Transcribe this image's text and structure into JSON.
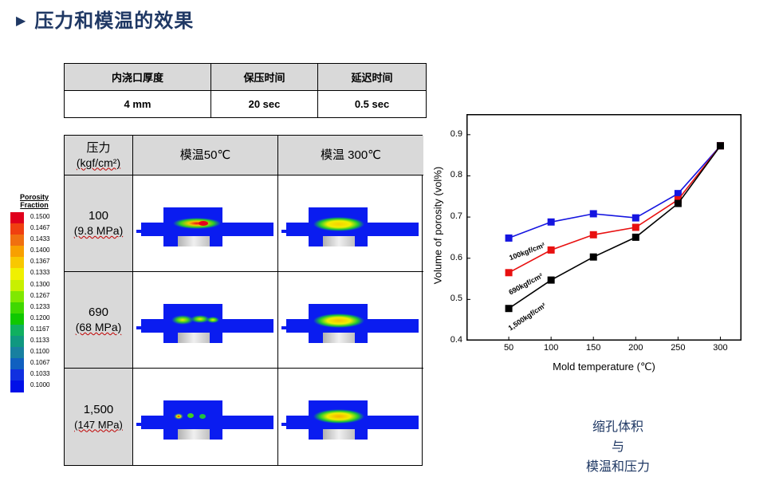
{
  "slide": {
    "title": "压力和模温的效果"
  },
  "params_table": {
    "headers": [
      "内浇口厚度",
      "保压时间",
      "延迟时间"
    ],
    "values": [
      "4 mm",
      "20 sec",
      "0.5 sec"
    ]
  },
  "sim_table": {
    "header": {
      "pressure_label": "压力",
      "pressure_unit": "(kgf/cm²)",
      "col1": "模温50℃",
      "col2": "模温 300℃"
    },
    "rows": [
      {
        "pressure": "100",
        "mpa": "(9.8 MPa)"
      },
      {
        "pressure": "690",
        "mpa": "(68 MPa)"
      },
      {
        "pressure": "1,500",
        "mpa": "(147 MPa)"
      }
    ]
  },
  "legend": {
    "title_line1": "Porosity",
    "title_line2": "Fraction",
    "values": [
      "0.1500",
      "0.1467",
      "0.1433",
      "0.1400",
      "0.1367",
      "0.1333",
      "0.1300",
      "0.1267",
      "0.1233",
      "0.1200",
      "0.1167",
      "0.1133",
      "0.1100",
      "0.1067",
      "0.1033",
      "0.1000"
    ],
    "colors": [
      "#e0001c",
      "#f04010",
      "#f07010",
      "#f8a000",
      "#f8c800",
      "#f0f000",
      "#c8f000",
      "#80e800",
      "#40d800",
      "#10c800",
      "#10b060",
      "#109880",
      "#1880a0",
      "#1060c0",
      "#1030e0",
      "#0010e8"
    ]
  },
  "chart_data": {
    "type": "line",
    "title": "",
    "xlabel": "Mold temperature (℃)",
    "ylabel": "Volume of porosity (vol%)",
    "x": [
      50,
      100,
      150,
      200,
      250,
      300
    ],
    "xlim": [
      0,
      325
    ],
    "ylim": [
      0.4,
      0.95
    ],
    "xticks": [
      50,
      100,
      150,
      200,
      250,
      300
    ],
    "yticks": [
      0.4,
      0.5,
      0.6,
      0.7,
      0.8,
      0.9
    ],
    "series": [
      {
        "name": "100kgf/cm²",
        "color": "#1515e0",
        "values": [
          0.649,
          0.688,
          0.708,
          0.698,
          0.757,
          0.873
        ]
      },
      {
        "name": "690kgf/cm²",
        "color": "#e81010",
        "values": [
          0.565,
          0.62,
          0.657,
          0.675,
          0.742,
          0.873
        ]
      },
      {
        "name": "1,500kgf/cm²",
        "color": "#000000",
        "values": [
          0.478,
          0.547,
          0.603,
          0.651,
          0.733,
          0.873
        ]
      }
    ]
  },
  "caption": {
    "line1": "缩孔体积",
    "line2": "与",
    "line3": "模温和压力"
  }
}
